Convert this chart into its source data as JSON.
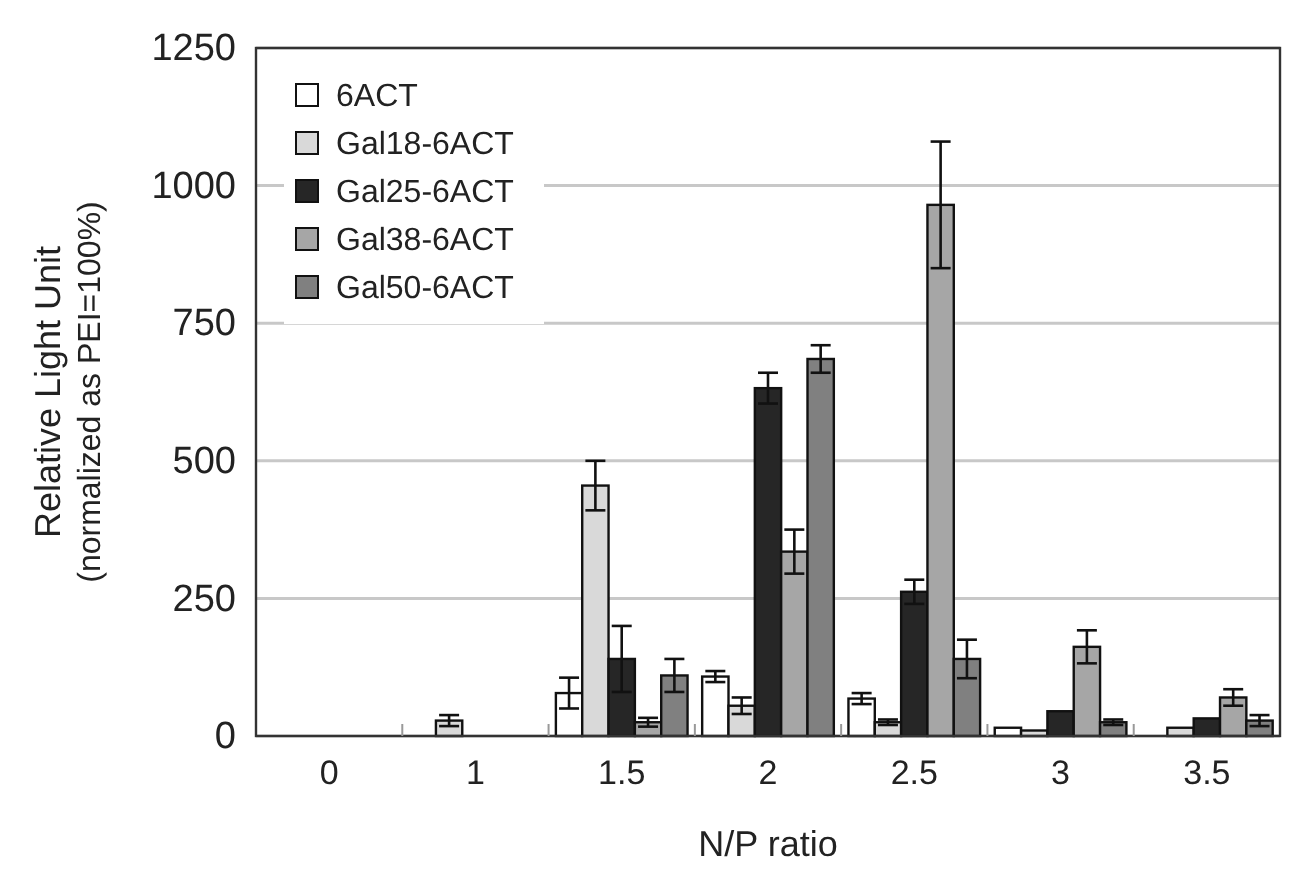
{
  "chart_data": {
    "type": "bar",
    "xlabel": "N/P ratio",
    "ylabel": "Relative Light Unit\n(normalized as PEI=100%)",
    "categories": [
      "0",
      "1",
      "1.5",
      "2",
      "2.5",
      "3",
      "3.5"
    ],
    "series": [
      {
        "name": "6ACT",
        "color": "#ffffff",
        "values": [
          0,
          null,
          78,
          108,
          68,
          15,
          null
        ],
        "errors": [
          null,
          null,
          28,
          10,
          10,
          null,
          null
        ]
      },
      {
        "name": "Gal18-6ACT",
        "color": "#d9d9d9",
        "values": [
          0,
          28,
          455,
          55,
          25,
          10,
          15
        ],
        "errors": [
          null,
          10,
          45,
          15,
          5,
          null,
          null
        ]
      },
      {
        "name": "Gal25-6ACT",
        "color": "#262626",
        "values": [
          0,
          0,
          140,
          632,
          262,
          45,
          32
        ],
        "errors": [
          null,
          null,
          60,
          28,
          22,
          null,
          null
        ]
      },
      {
        "name": "Gal38-6ACT",
        "color": "#a6a6a6",
        "values": [
          0,
          0,
          25,
          335,
          965,
          162,
          70
        ],
        "errors": [
          null,
          null,
          8,
          40,
          115,
          30,
          15
        ]
      },
      {
        "name": "Gal50-6ACT",
        "color": "#808080",
        "values": [
          0,
          0,
          110,
          685,
          140,
          25,
          28
        ],
        "errors": [
          null,
          null,
          30,
          25,
          35,
          5,
          10
        ]
      }
    ],
    "ylim": [
      0,
      1250
    ],
    "yticks": [
      0,
      250,
      500,
      750,
      1000,
      1250
    ],
    "grid": "y",
    "legend": "top left"
  }
}
